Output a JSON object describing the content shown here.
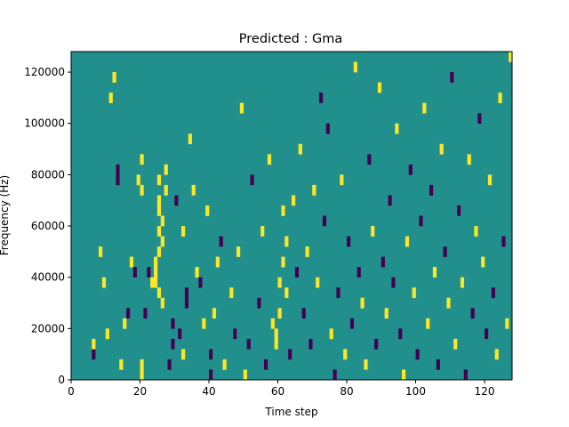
{
  "chart_data": {
    "type": "heatmap",
    "title": "Predicted : Gma",
    "xlabel": "Time step",
    "ylabel": "Frequency (Hz)",
    "xlim": [
      0,
      128
    ],
    "ylim": [
      0,
      128000
    ],
    "x_ticks": [
      0,
      20,
      40,
      60,
      80,
      100,
      120
    ],
    "y_ticks": [
      0,
      20000,
      40000,
      60000,
      80000,
      100000,
      120000
    ],
    "x_tick_labels": [
      "0",
      "20",
      "40",
      "60",
      "80",
      "100",
      "120"
    ],
    "y_tick_labels": [
      "0",
      "20000",
      "40000",
      "60000",
      "80000",
      "100000",
      "120000"
    ],
    "grid": false,
    "colormap": "viridis",
    "colors": {
      "background": "#21908d",
      "high": "#fde725",
      "low": "#440154"
    },
    "value_levels": [
      -1,
      0,
      1
    ],
    "rows": 32,
    "background_value": 0,
    "cells": [
      {
        "t": 6,
        "f": 2,
        "v": -1
      },
      {
        "t": 6,
        "f": 3,
        "v": 1
      },
      {
        "t": 8,
        "f": 12,
        "v": 1
      },
      {
        "t": 9,
        "f": 9,
        "v": 1
      },
      {
        "t": 10,
        "f": 4,
        "v": 1
      },
      {
        "t": 11,
        "f": 27,
        "v": 1
      },
      {
        "t": 12,
        "f": 29,
        "v": 1
      },
      {
        "t": 13,
        "f": 19,
        "v": -1
      },
      {
        "t": 13,
        "f": 20,
        "v": -1
      },
      {
        "t": 14,
        "f": 1,
        "v": 1
      },
      {
        "t": 15,
        "f": 5,
        "v": 1
      },
      {
        "t": 16,
        "f": 6,
        "v": -1
      },
      {
        "t": 17,
        "f": 11,
        "v": 1
      },
      {
        "t": 18,
        "f": 10,
        "v": -1
      },
      {
        "t": 19,
        "f": 19,
        "v": 1
      },
      {
        "t": 20,
        "f": 0,
        "v": 1
      },
      {
        "t": 20,
        "f": 1,
        "v": 1
      },
      {
        "t": 20,
        "f": 18,
        "v": 1
      },
      {
        "t": 20,
        "f": 21,
        "v": 1
      },
      {
        "t": 21,
        "f": 6,
        "v": -1
      },
      {
        "t": 22,
        "f": 10,
        "v": -1
      },
      {
        "t": 23,
        "f": 9,
        "v": 1
      },
      {
        "t": 24,
        "f": 9,
        "v": 1
      },
      {
        "t": 24,
        "f": 10,
        "v": 1
      },
      {
        "t": 24,
        "f": 11,
        "v": 1
      },
      {
        "t": 25,
        "f": 8,
        "v": 1
      },
      {
        "t": 25,
        "f": 12,
        "v": 1
      },
      {
        "t": 25,
        "f": 14,
        "v": 1
      },
      {
        "t": 25,
        "f": 16,
        "v": 1
      },
      {
        "t": 25,
        "f": 17,
        "v": 1
      },
      {
        "t": 25,
        "f": 19,
        "v": 1
      },
      {
        "t": 26,
        "f": 7,
        "v": 1
      },
      {
        "t": 26,
        "f": 13,
        "v": 1
      },
      {
        "t": 26,
        "f": 15,
        "v": 1
      },
      {
        "t": 27,
        "f": 18,
        "v": 1
      },
      {
        "t": 27,
        "f": 20,
        "v": 1
      },
      {
        "t": 28,
        "f": 1,
        "v": -1
      },
      {
        "t": 29,
        "f": 3,
        "v": -1
      },
      {
        "t": 29,
        "f": 5,
        "v": -1
      },
      {
        "t": 30,
        "f": 17,
        "v": -1
      },
      {
        "t": 31,
        "f": 4,
        "v": -1
      },
      {
        "t": 32,
        "f": 2,
        "v": 1
      },
      {
        "t": 32,
        "f": 14,
        "v": 1
      },
      {
        "t": 33,
        "f": 7,
        "v": -1
      },
      {
        "t": 33,
        "f": 8,
        "v": -1
      },
      {
        "t": 34,
        "f": 23,
        "v": 1
      },
      {
        "t": 35,
        "f": 18,
        "v": 1
      },
      {
        "t": 36,
        "f": 10,
        "v": 1
      },
      {
        "t": 37,
        "f": 9,
        "v": -1
      },
      {
        "t": 38,
        "f": 5,
        "v": 1
      },
      {
        "t": 39,
        "f": 16,
        "v": 1
      },
      {
        "t": 40,
        "f": 0,
        "v": -1
      },
      {
        "t": 40,
        "f": 2,
        "v": -1
      },
      {
        "t": 41,
        "f": 6,
        "v": 1
      },
      {
        "t": 42,
        "f": 11,
        "v": 1
      },
      {
        "t": 43,
        "f": 13,
        "v": -1
      },
      {
        "t": 44,
        "f": 1,
        "v": 1
      },
      {
        "t": 46,
        "f": 8,
        "v": 1
      },
      {
        "t": 47,
        "f": 4,
        "v": -1
      },
      {
        "t": 48,
        "f": 12,
        "v": 1
      },
      {
        "t": 49,
        "f": 26,
        "v": 1
      },
      {
        "t": 50,
        "f": 0,
        "v": 1
      },
      {
        "t": 51,
        "f": 3,
        "v": -1
      },
      {
        "t": 52,
        "f": 19,
        "v": -1
      },
      {
        "t": 54,
        "f": 7,
        "v": -1
      },
      {
        "t": 55,
        "f": 14,
        "v": 1
      },
      {
        "t": 56,
        "f": 1,
        "v": -1
      },
      {
        "t": 57,
        "f": 21,
        "v": 1
      },
      {
        "t": 58,
        "f": 5,
        "v": 1
      },
      {
        "t": 59,
        "f": 3,
        "v": 1
      },
      {
        "t": 59,
        "f": 4,
        "v": 1
      },
      {
        "t": 60,
        "f": 6,
        "v": 1
      },
      {
        "t": 60,
        "f": 9,
        "v": 1
      },
      {
        "t": 61,
        "f": 11,
        "v": 1
      },
      {
        "t": 61,
        "f": 16,
        "v": 1
      },
      {
        "t": 62,
        "f": 8,
        "v": 1
      },
      {
        "t": 62,
        "f": 13,
        "v": 1
      },
      {
        "t": 63,
        "f": 2,
        "v": -1
      },
      {
        "t": 64,
        "f": 17,
        "v": 1
      },
      {
        "t": 65,
        "f": 10,
        "v": -1
      },
      {
        "t": 66,
        "f": 22,
        "v": 1
      },
      {
        "t": 67,
        "f": 6,
        "v": -1
      },
      {
        "t": 68,
        "f": 12,
        "v": 1
      },
      {
        "t": 69,
        "f": 3,
        "v": -1
      },
      {
        "t": 70,
        "f": 18,
        "v": 1
      },
      {
        "t": 71,
        "f": 9,
        "v": 1
      },
      {
        "t": 72,
        "f": 27,
        "v": -1
      },
      {
        "t": 73,
        "f": 15,
        "v": -1
      },
      {
        "t": 74,
        "f": 24,
        "v": -1
      },
      {
        "t": 75,
        "f": 4,
        "v": 1
      },
      {
        "t": 76,
        "f": 0,
        "v": -1
      },
      {
        "t": 77,
        "f": 8,
        "v": -1
      },
      {
        "t": 78,
        "f": 19,
        "v": 1
      },
      {
        "t": 79,
        "f": 2,
        "v": 1
      },
      {
        "t": 80,
        "f": 13,
        "v": -1
      },
      {
        "t": 81,
        "f": 5,
        "v": -1
      },
      {
        "t": 82,
        "f": 30,
        "v": 1
      },
      {
        "t": 83,
        "f": 10,
        "v": -1
      },
      {
        "t": 84,
        "f": 7,
        "v": 1
      },
      {
        "t": 85,
        "f": 1,
        "v": 1
      },
      {
        "t": 86,
        "f": 21,
        "v": -1
      },
      {
        "t": 87,
        "f": 14,
        "v": 1
      },
      {
        "t": 88,
        "f": 3,
        "v": -1
      },
      {
        "t": 89,
        "f": 28,
        "v": 1
      },
      {
        "t": 90,
        "f": 11,
        "v": -1
      },
      {
        "t": 91,
        "f": 6,
        "v": 1
      },
      {
        "t": 92,
        "f": 17,
        "v": -1
      },
      {
        "t": 93,
        "f": 9,
        "v": -1
      },
      {
        "t": 94,
        "f": 24,
        "v": 1
      },
      {
        "t": 95,
        "f": 4,
        "v": -1
      },
      {
        "t": 96,
        "f": 0,
        "v": 1
      },
      {
        "t": 97,
        "f": 13,
        "v": 1
      },
      {
        "t": 98,
        "f": 20,
        "v": -1
      },
      {
        "t": 99,
        "f": 8,
        "v": 1
      },
      {
        "t": 100,
        "f": 2,
        "v": -1
      },
      {
        "t": 101,
        "f": 15,
        "v": -1
      },
      {
        "t": 102,
        "f": 26,
        "v": 1
      },
      {
        "t": 103,
        "f": 5,
        "v": 1
      },
      {
        "t": 104,
        "f": 18,
        "v": -1
      },
      {
        "t": 105,
        "f": 10,
        "v": 1
      },
      {
        "t": 106,
        "f": 1,
        "v": -1
      },
      {
        "t": 107,
        "f": 22,
        "v": 1
      },
      {
        "t": 108,
        "f": 12,
        "v": -1
      },
      {
        "t": 109,
        "f": 7,
        "v": 1
      },
      {
        "t": 110,
        "f": 29,
        "v": -1
      },
      {
        "t": 111,
        "f": 3,
        "v": 1
      },
      {
        "t": 112,
        "f": 16,
        "v": -1
      },
      {
        "t": 113,
        "f": 9,
        "v": 1
      },
      {
        "t": 114,
        "f": 0,
        "v": -1
      },
      {
        "t": 115,
        "f": 21,
        "v": 1
      },
      {
        "t": 116,
        "f": 6,
        "v": -1
      },
      {
        "t": 117,
        "f": 14,
        "v": 1
      },
      {
        "t": 118,
        "f": 25,
        "v": -1
      },
      {
        "t": 119,
        "f": 11,
        "v": 1
      },
      {
        "t": 120,
        "f": 4,
        "v": -1
      },
      {
        "t": 121,
        "f": 19,
        "v": 1
      },
      {
        "t": 122,
        "f": 8,
        "v": -1
      },
      {
        "t": 123,
        "f": 2,
        "v": 1
      },
      {
        "t": 124,
        "f": 27,
        "v": 1
      },
      {
        "t": 125,
        "f": 13,
        "v": -1
      },
      {
        "t": 126,
        "f": 5,
        "v": 1
      },
      {
        "t": 127,
        "f": 31,
        "v": 1
      }
    ]
  }
}
